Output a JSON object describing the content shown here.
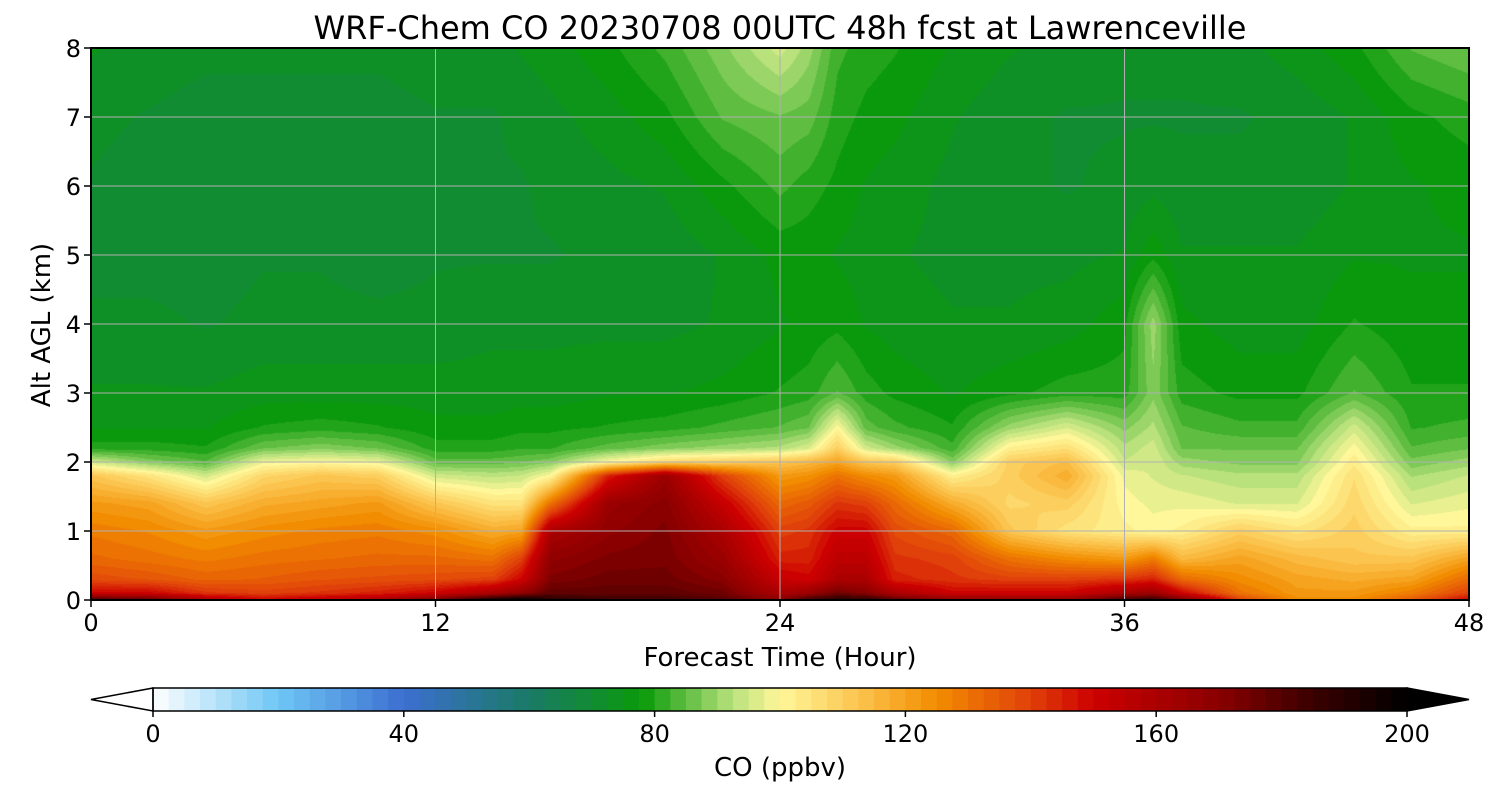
{
  "chart_data": {
    "type": "heatmap",
    "title": "WRF-Chem CO  20230708 00UTC 48h fcst at Lawrenceville",
    "xlabel": "Forecast Time (Hour)",
    "ylabel": "Alt AGL (km)",
    "xlim": [
      0,
      48
    ],
    "ylim": [
      0,
      8
    ],
    "x_ticks": [
      0,
      12,
      24,
      36,
      48
    ],
    "x_tick_labels": [
      "0",
      "12",
      "24",
      "36",
      "48"
    ],
    "y_ticks": [
      0,
      1,
      2,
      3,
      4,
      5,
      6,
      7,
      8
    ],
    "y_tick_labels": [
      "0",
      "1",
      "2",
      "3",
      "4",
      "5",
      "6",
      "7",
      "8"
    ],
    "grid": true,
    "colorbar": {
      "label": "CO  (ppbv)",
      "min": 0,
      "max": 200,
      "extend": "both",
      "ticks": [
        0,
        40,
        80,
        120,
        160,
        200
      ],
      "tick_labels": [
        "0",
        "40",
        "80",
        "120",
        "160",
        "200"
      ],
      "colors": [
        {
          "v": 0,
          "c": "#ffffff"
        },
        {
          "v": 20,
          "c": "#6ec6f5"
        },
        {
          "v": 40,
          "c": "#3d6fd1"
        },
        {
          "v": 60,
          "c": "#1a7a66"
        },
        {
          "v": 78,
          "c": "#0a9a0a"
        },
        {
          "v": 92,
          "c": "#b4e07a"
        },
        {
          "v": 100,
          "c": "#fff79a"
        },
        {
          "v": 113,
          "c": "#fbc24b"
        },
        {
          "v": 125,
          "c": "#f28c00"
        },
        {
          "v": 140,
          "c": "#e0400a"
        },
        {
          "v": 150,
          "c": "#cc0000"
        },
        {
          "v": 170,
          "c": "#8a0000"
        },
        {
          "v": 185,
          "c": "#3a0000"
        },
        {
          "v": 200,
          "c": "#000000"
        }
      ]
    },
    "profile_hours": [
      0,
      2,
      4,
      6,
      8,
      10,
      12,
      14,
      15,
      16,
      18,
      20,
      22,
      24,
      25,
      26,
      27,
      28,
      30,
      32,
      34,
      36,
      37,
      38,
      40,
      42,
      44,
      46,
      48
    ],
    "profile_altitudes_km": [
      0,
      0.1,
      0.3,
      0.6,
      1.0,
      1.4,
      1.8,
      2.0,
      2.2,
      2.5,
      3,
      4,
      5,
      6,
      7,
      8
    ],
    "co_ppbv_profiles": [
      [
        185,
        150,
        138,
        132,
        128,
        122,
        112,
        95,
        80,
        76,
        74,
        72,
        70,
        71,
        72,
        74
      ],
      [
        180,
        150,
        136,
        130,
        126,
        120,
        105,
        88,
        80,
        76,
        74,
        72,
        70,
        70,
        71,
        73
      ],
      [
        160,
        142,
        133,
        128,
        122,
        112,
        95,
        84,
        79,
        76,
        74,
        71,
        70,
        70,
        70,
        72
      ],
      [
        150,
        140,
        134,
        130,
        125,
        118,
        108,
        98,
        86,
        79,
        75,
        72,
        71,
        70,
        70,
        72
      ],
      [
        155,
        142,
        136,
        131,
        127,
        120,
        112,
        100,
        88,
        80,
        75,
        72,
        71,
        70,
        70,
        72
      ],
      [
        160,
        145,
        137,
        132,
        128,
        122,
        110,
        98,
        86,
        79,
        75,
        72,
        70,
        70,
        70,
        72
      ],
      [
        175,
        150,
        138,
        132,
        125,
        112,
        95,
        85,
        80,
        77,
        75,
        72,
        71,
        70,
        71,
        73
      ],
      [
        195,
        160,
        140,
        130,
        118,
        105,
        93,
        85,
        80,
        77,
        75,
        73,
        71,
        71,
        71,
        73
      ],
      [
        200,
        168,
        150,
        140,
        120,
        105,
        94,
        86,
        81,
        78,
        75,
        73,
        71,
        71,
        72,
        74
      ],
      [
        190,
        178,
        172,
        168,
        160,
        130,
        100,
        88,
        81,
        78,
        75,
        73,
        71,
        72,
        73,
        75
      ],
      [
        185,
        178,
        175,
        172,
        168,
        165,
        145,
        100,
        85,
        79,
        76,
        73,
        72,
        73,
        75,
        78
      ],
      [
        185,
        178,
        175,
        173,
        172,
        170,
        165,
        108,
        88,
        80,
        76,
        73,
        72,
        74,
        78,
        82
      ],
      [
        180,
        175,
        170,
        165,
        160,
        152,
        140,
        110,
        90,
        82,
        77,
        74,
        74,
        78,
        84,
        88
      ],
      [
        170,
        160,
        152,
        145,
        140,
        132,
        122,
        112,
        92,
        84,
        79,
        76,
        77,
        82,
        86,
        95
      ],
      [
        185,
        165,
        150,
        145,
        142,
        135,
        124,
        115,
        96,
        86,
        80,
        77,
        77,
        80,
        85,
        90
      ],
      [
        190,
        175,
        160,
        155,
        150,
        142,
        130,
        120,
        110,
        100,
        84,
        78,
        76,
        78,
        80,
        82
      ],
      [
        190,
        170,
        160,
        155,
        150,
        140,
        125,
        112,
        95,
        85,
        80,
        76,
        75,
        76,
        78,
        80
      ],
      [
        180,
        160,
        145,
        142,
        138,
        132,
        122,
        110,
        90,
        82,
        78,
        75,
        74,
        75,
        77,
        79
      ],
      [
        170,
        150,
        142,
        140,
        132,
        118,
        102,
        88,
        82,
        79,
        76,
        74,
        73,
        73,
        74,
        76
      ],
      [
        168,
        150,
        140,
        130,
        112,
        108,
        110,
        110,
        102,
        90,
        78,
        74,
        73,
        72,
        72,
        74
      ],
      [
        168,
        150,
        140,
        125,
        105,
        110,
        118,
        114,
        106,
        96,
        80,
        75,
        73,
        71,
        71,
        73
      ],
      [
        185,
        160,
        142,
        122,
        102,
        100,
        98,
        94,
        92,
        88,
        80,
        78,
        74,
        72,
        71,
        72
      ],
      [
        188,
        165,
        145,
        128,
        100,
        98,
        96,
        96,
        95,
        92,
        88,
        90,
        78,
        73,
        71,
        72
      ],
      [
        175,
        150,
        132,
        115,
        102,
        98,
        94,
        90,
        86,
        84,
        80,
        77,
        74,
        72,
        71,
        72
      ],
      [
        140,
        130,
        125,
        120,
        110,
        96,
        92,
        88,
        86,
        82,
        78,
        75,
        74,
        72,
        71,
        73
      ],
      [
        125,
        122,
        120,
        115,
        105,
        96,
        92,
        88,
        86,
        82,
        78,
        75,
        74,
        72,
        72,
        75
      ],
      [
        125,
        122,
        118,
        112,
        110,
        108,
        106,
        103,
        100,
        95,
        84,
        79,
        76,
        74,
        74,
        78
      ],
      [
        135,
        128,
        120,
        112,
        102,
        96,
        91,
        87,
        84,
        81,
        79,
        77,
        76,
        76,
        78,
        84
      ],
      [
        150,
        140,
        132,
        120,
        102,
        98,
        94,
        90,
        86,
        82,
        79,
        77,
        76,
        77,
        80,
        86
      ]
    ]
  }
}
